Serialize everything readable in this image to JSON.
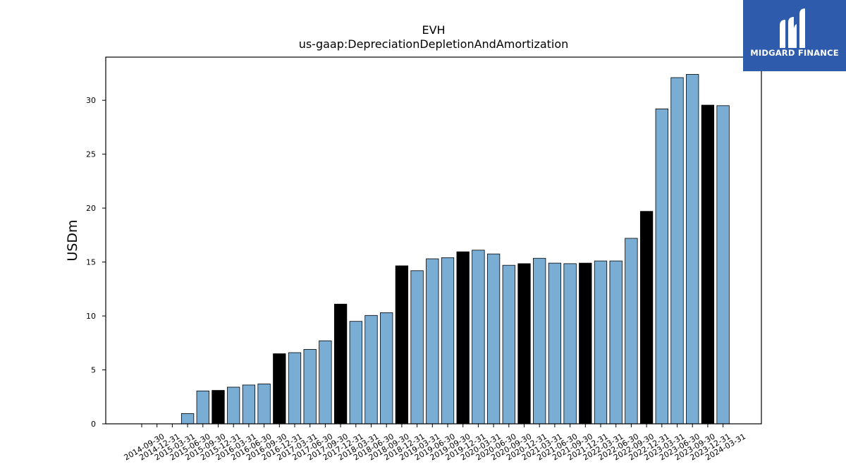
{
  "chart_data": {
    "type": "bar",
    "title": "EVH",
    "subtitle": "us-gaap:DepreciationDepletionAndAmortization",
    "xlabel": "",
    "ylabel": "USDm",
    "ylim": [
      0,
      34
    ],
    "yticks": [
      0,
      5,
      10,
      15,
      20,
      25,
      30
    ],
    "grid": false,
    "colors": {
      "quarter": "#7aadd4",
      "fiscal_year": "#000000",
      "edge": "#000000"
    },
    "categories": [
      "2014-09-30",
      "2014-12-31",
      "2015-03-31",
      "2015-06-30",
      "2015-09-30",
      "2015-12-31",
      "2016-03-31",
      "2016-06-30",
      "2016-09-30",
      "2016-12-31",
      "2017-03-31",
      "2017-06-30",
      "2017-09-30",
      "2017-12-31",
      "2018-03-31",
      "2018-06-30",
      "2018-09-30",
      "2018-12-31",
      "2019-03-31",
      "2019-06-30",
      "2019-09-30",
      "2019-12-31",
      "2020-03-31",
      "2020-06-30",
      "2020-09-30",
      "2020-12-31",
      "2021-03-31",
      "2021-06-30",
      "2021-09-30",
      "2021-12-31",
      "2022-03-31",
      "2022-06-30",
      "2022-09-30",
      "2022-12-31",
      "2023-03-31",
      "2023-06-30",
      "2023-09-30",
      "2023-12-31",
      "2024-03-31"
    ],
    "values": [
      0,
      0,
      0,
      0.95,
      3.05,
      3.1,
      3.4,
      3.6,
      3.7,
      6.5,
      6.6,
      6.9,
      7.7,
      11.1,
      9.5,
      10.05,
      10.3,
      14.65,
      14.2,
      15.3,
      15.4,
      15.95,
      16.1,
      15.75,
      14.7,
      14.85,
      15.35,
      14.9,
      14.85,
      14.9,
      15.1,
      15.1,
      17.2,
      19.7,
      29.2,
      32.1,
      32.4,
      29.55,
      29.5
    ],
    "highlight": [
      false,
      false,
      false,
      false,
      false,
      true,
      false,
      false,
      false,
      true,
      false,
      false,
      false,
      true,
      false,
      false,
      false,
      true,
      false,
      false,
      false,
      true,
      false,
      false,
      false,
      true,
      false,
      false,
      false,
      true,
      false,
      false,
      false,
      true,
      false,
      false,
      false,
      true,
      false
    ]
  },
  "logo": {
    "text": "MIDGARD FINANCE",
    "background": "#2e5bab"
  }
}
